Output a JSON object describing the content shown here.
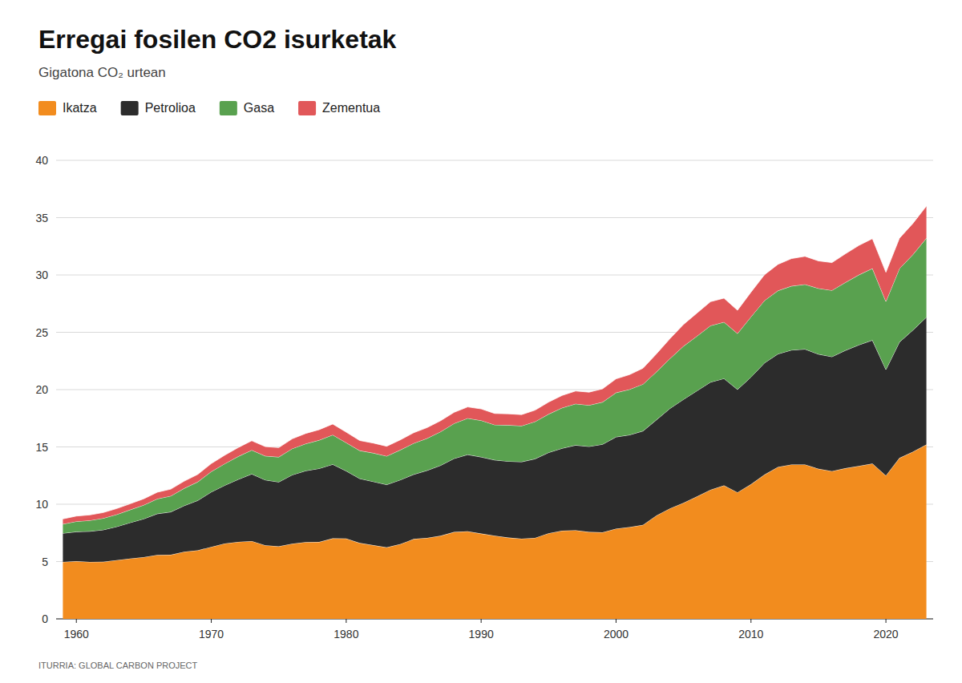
{
  "chart_data": {
    "type": "area",
    "stacked": true,
    "title": "Erregai fosilen CO2 isurketak",
    "subtitle": "Gigatona CO₂ urtean",
    "source": "ITURRIA: GLOBAL CARBON PROJECT",
    "grid": true,
    "legend": "top",
    "xlim": [
      1958.5,
      2023.5
    ],
    "xticks": [
      1960,
      1970,
      1980,
      1990,
      2000,
      2010,
      2020
    ],
    "ylim": [
      0,
      40
    ],
    "yticks": [
      0,
      5,
      10,
      15,
      20,
      25,
      30,
      35,
      40
    ],
    "x": [
      1959,
      1960,
      1961,
      1962,
      1963,
      1964,
      1965,
      1966,
      1967,
      1968,
      1969,
      1970,
      1971,
      1972,
      1973,
      1974,
      1975,
      1976,
      1977,
      1978,
      1979,
      1980,
      1981,
      1982,
      1983,
      1984,
      1985,
      1986,
      1987,
      1988,
      1989,
      1990,
      1991,
      1992,
      1993,
      1994,
      1995,
      1996,
      1997,
      1998,
      1999,
      2000,
      2001,
      2002,
      2003,
      2004,
      2005,
      2006,
      2007,
      2008,
      2009,
      2010,
      2011,
      2012,
      2013,
      2014,
      2015,
      2016,
      2017,
      2018,
      2019,
      2020,
      2021,
      2022,
      2023
    ],
    "series": [
      {
        "name": "Ikatza",
        "color": "#F28C1E",
        "values": [
          4.97,
          5.03,
          4.97,
          4.98,
          5.13,
          5.27,
          5.39,
          5.58,
          5.59,
          5.86,
          5.98,
          6.28,
          6.58,
          6.72,
          6.79,
          6.42,
          6.33,
          6.56,
          6.7,
          6.71,
          7.02,
          7.01,
          6.62,
          6.43,
          6.24,
          6.52,
          6.97,
          7.07,
          7.25,
          7.58,
          7.64,
          7.44,
          7.26,
          7.09,
          7.0,
          7.07,
          7.47,
          7.69,
          7.73,
          7.58,
          7.55,
          7.87,
          8.01,
          8.2,
          9.02,
          9.64,
          10.12,
          10.68,
          11.26,
          11.64,
          11.04,
          11.74,
          12.58,
          13.25,
          13.47,
          13.47,
          13.09,
          12.89,
          13.14,
          13.34,
          13.55,
          12.5,
          14.03,
          14.58,
          15.21
        ]
      },
      {
        "name": "Petrolioa",
        "color": "#2C2C2C",
        "values": [
          2.5,
          2.57,
          2.67,
          2.79,
          2.92,
          3.13,
          3.34,
          3.59,
          3.74,
          4.02,
          4.35,
          4.79,
          5.07,
          5.45,
          5.85,
          5.7,
          5.61,
          6.0,
          6.22,
          6.41,
          6.46,
          5.89,
          5.62,
          5.55,
          5.47,
          5.6,
          5.63,
          5.88,
          6.14,
          6.41,
          6.69,
          6.68,
          6.6,
          6.66,
          6.7,
          6.89,
          7.04,
          7.19,
          7.42,
          7.46,
          7.68,
          8.0,
          8.04,
          8.19,
          8.35,
          8.72,
          9.03,
          9.22,
          9.39,
          9.33,
          8.97,
          9.35,
          9.75,
          9.86,
          9.98,
          10.06,
          10.0,
          9.98,
          10.28,
          10.56,
          10.76,
          9.25,
          10.11,
          10.61,
          11.1
        ]
      },
      {
        "name": "Gasa",
        "values": [
          0.8,
          0.9,
          0.95,
          1.01,
          1.06,
          1.12,
          1.2,
          1.3,
          1.39,
          1.51,
          1.62,
          1.78,
          1.89,
          2.0,
          2.08,
          2.09,
          2.18,
          2.29,
          2.36,
          2.47,
          2.57,
          2.47,
          2.44,
          2.49,
          2.49,
          2.61,
          2.72,
          2.8,
          2.94,
          3.06,
          3.17,
          3.19,
          3.07,
          3.15,
          3.14,
          3.25,
          3.35,
          3.53,
          3.61,
          3.6,
          3.68,
          3.86,
          3.97,
          4.09,
          4.19,
          4.35,
          4.64,
          4.77,
          4.93,
          4.92,
          4.88,
          5.26,
          5.44,
          5.52,
          5.58,
          5.65,
          5.74,
          5.79,
          5.93,
          6.11,
          6.26,
          5.94,
          6.41,
          6.59,
          6.9
        ]
      },
      {
        "name": "Zementua",
        "values": [
          0.45,
          0.47,
          0.48,
          0.5,
          0.52,
          0.53,
          0.55,
          0.58,
          0.6,
          0.63,
          0.66,
          0.7,
          0.74,
          0.78,
          0.82,
          0.82,
          0.82,
          0.86,
          0.9,
          0.92,
          0.95,
          0.92,
          0.88,
          0.87,
          0.86,
          0.88,
          0.92,
          0.94,
          0.96,
          0.97,
          0.99,
          1.01,
          0.99,
          0.99,
          0.98,
          1.0,
          1.05,
          1.08,
          1.12,
          1.14,
          1.16,
          1.21,
          1.29,
          1.39,
          1.57,
          1.74,
          1.9,
          2.01,
          2.09,
          2.09,
          2.03,
          2.15,
          2.25,
          2.3,
          2.4,
          2.45,
          2.4,
          2.42,
          2.5,
          2.57,
          2.6,
          2.55,
          2.65,
          2.72,
          2.8
        ]
      }
    ]
  }
}
